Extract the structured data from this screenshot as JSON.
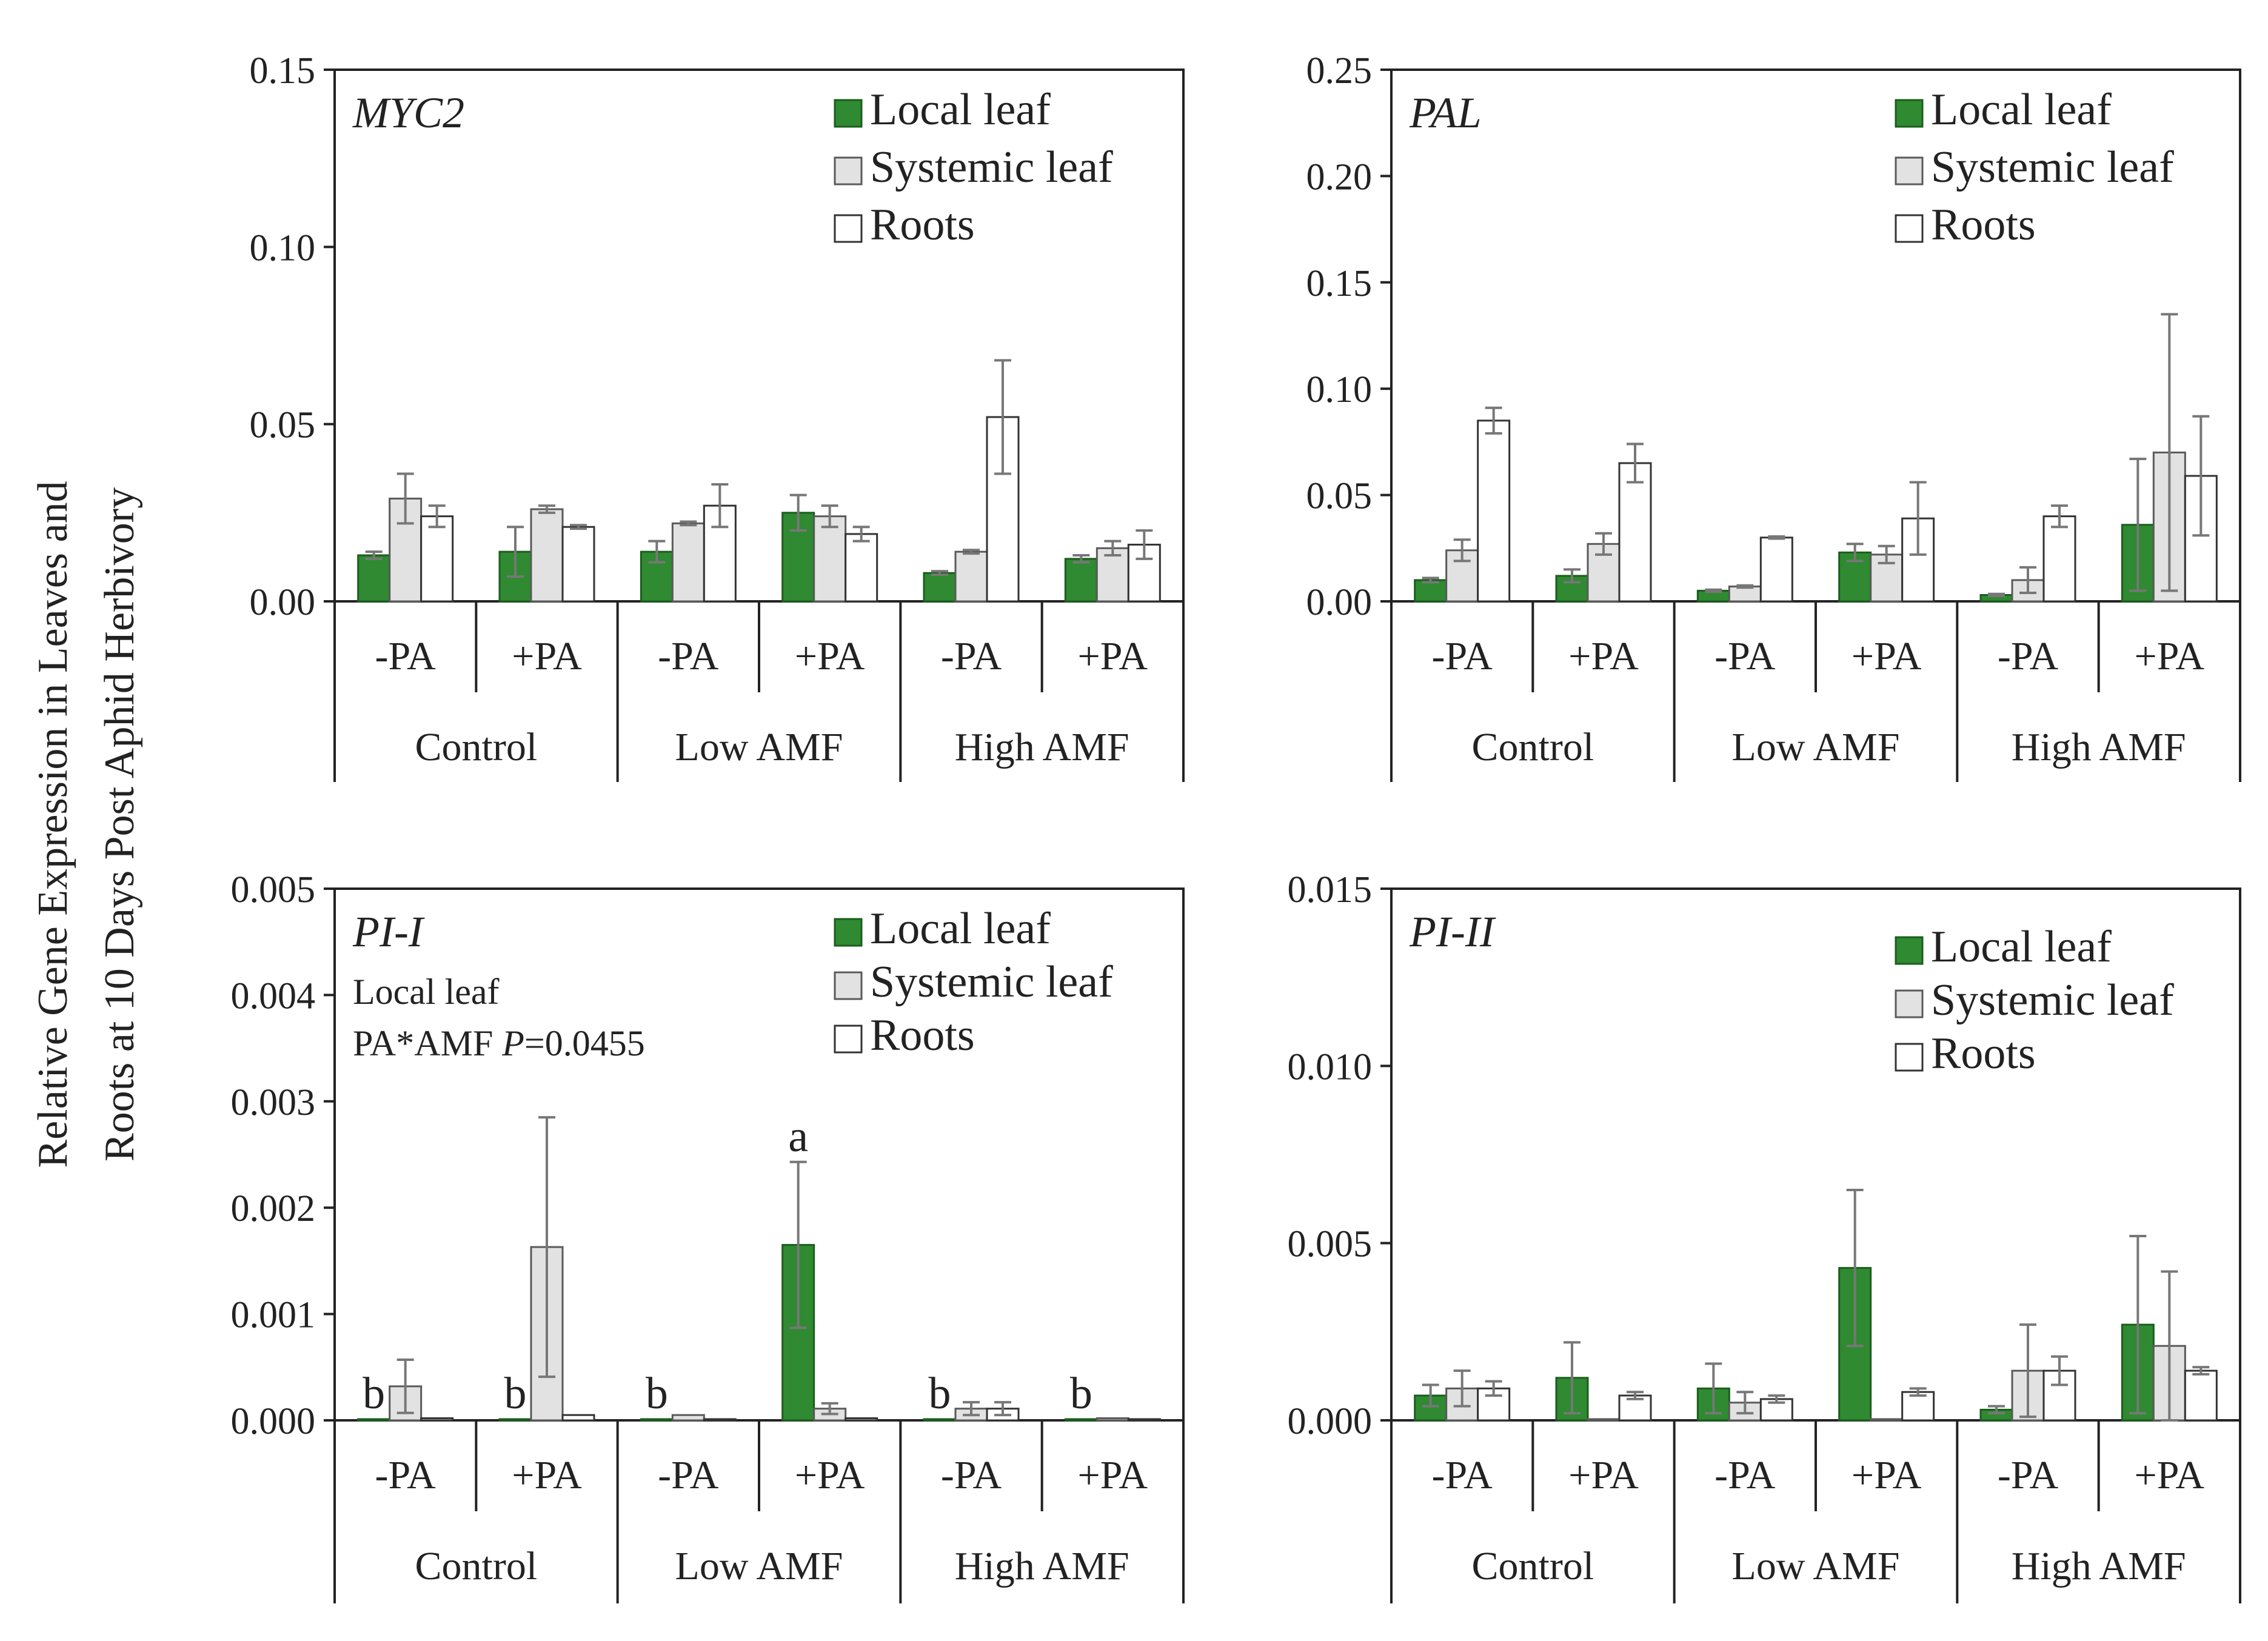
{
  "y_axis_label": {
    "line1": "Relative  Gene  Expression  in  Leaves  and",
    "line2": "Roots at 10 Days Post Aphid Herbivory"
  },
  "colors": {
    "local_leaf": "#2f8a31",
    "systemic_leaf": "#e2e2e2",
    "roots": "#ffffff",
    "axis": "#222222",
    "error_bar": "#777777"
  },
  "chart_data": [
    {
      "type": "bar",
      "title": "MYC2",
      "categories": [
        "-PA",
        "+PA",
        "-PA",
        "+PA",
        "-PA",
        "+PA"
      ],
      "groups": [
        "Control",
        "Low AMF",
        "High AMF"
      ],
      "legend": [
        "Local leaf",
        "Systemic leaf",
        "Roots"
      ],
      "ylim": [
        0,
        0.15
      ],
      "yticks": [
        "0.00",
        "0.05",
        "0.10",
        "0.15"
      ],
      "series": [
        {
          "name": "Local leaf",
          "values": [
            0.013,
            0.014,
            0.014,
            0.025,
            0.008,
            0.012
          ],
          "errors": [
            0.001,
            0.007,
            0.003,
            0.005,
            0.0005,
            0.001
          ]
        },
        {
          "name": "Systemic leaf",
          "values": [
            0.029,
            0.026,
            0.022,
            0.024,
            0.014,
            0.015
          ],
          "errors": [
            0.007,
            0.001,
            0.0005,
            0.003,
            0.0005,
            0.002
          ]
        },
        {
          "name": "Roots",
          "values": [
            0.024,
            0.021,
            0.027,
            0.019,
            0.052,
            0.016
          ],
          "errors": [
            0.003,
            0.0005,
            0.006,
            0.002,
            0.016,
            0.004
          ]
        }
      ]
    },
    {
      "type": "bar",
      "title": "PAL",
      "categories": [
        "-PA",
        "+PA",
        "-PA",
        "+PA",
        "-PA",
        "+PA"
      ],
      "groups": [
        "Control",
        "Low AMF",
        "High AMF"
      ],
      "legend": [
        "Local leaf",
        "Systemic leaf",
        "Roots"
      ],
      "ylim": [
        0,
        0.25
      ],
      "yticks": [
        "0.00",
        "0.05",
        "0.10",
        "0.15",
        "0.20",
        "0.25"
      ],
      "series": [
        {
          "name": "Local leaf",
          "values": [
            0.01,
            0.012,
            0.005,
            0.023,
            0.003,
            0.036
          ],
          "errors": [
            0.001,
            0.003,
            0.0005,
            0.004,
            0.0005,
            0.031
          ]
        },
        {
          "name": "Systemic leaf",
          "values": [
            0.024,
            0.027,
            0.007,
            0.022,
            0.01,
            0.07
          ],
          "errors": [
            0.005,
            0.005,
            0.0005,
            0.004,
            0.006,
            0.065
          ]
        },
        {
          "name": "Roots",
          "values": [
            0.085,
            0.065,
            0.03,
            0.039,
            0.04,
            0.059
          ],
          "errors": [
            0.006,
            0.009,
            0.0005,
            0.017,
            0.005,
            0.028
          ]
        }
      ]
    },
    {
      "type": "bar",
      "title": "PI-I",
      "annotation_line1": "Local leaf",
      "annotation_line2_prefix": "PA*AMF ",
      "annotation_p": "P",
      "annotation_value": "=0.0455",
      "categories": [
        "-PA",
        "+PA",
        "-PA",
        "+PA",
        "-PA",
        "+PA"
      ],
      "groups": [
        "Control",
        "Low AMF",
        "High AMF"
      ],
      "legend": [
        "Local leaf",
        "Systemic leaf",
        "Roots"
      ],
      "ylim": [
        0,
        0.005
      ],
      "yticks": [
        "0.000",
        "0.001",
        "0.002",
        "0.003",
        "0.004",
        "0.005"
      ],
      "letters": [
        "b",
        "b",
        "b",
        "a",
        "b",
        "b"
      ],
      "series": [
        {
          "name": "Local leaf",
          "values": [
            1e-05,
            1e-05,
            1e-05,
            0.00165,
            1e-05,
            1e-05
          ],
          "errors": [
            0,
            0,
            0,
            0.00078,
            0,
            0
          ]
        },
        {
          "name": "Systemic leaf",
          "values": [
            0.00032,
            0.00163,
            5e-05,
            0.00011,
            0.00011,
            2e-05
          ],
          "errors": [
            0.00025,
            0.00122,
            0,
            5e-05,
            6e-05,
            0
          ]
        },
        {
          "name": "Roots",
          "values": [
            2e-05,
            5e-05,
            1e-05,
            2e-05,
            0.00011,
            1e-05
          ],
          "errors": [
            0,
            0,
            0,
            0,
            6e-05,
            0
          ]
        }
      ]
    },
    {
      "type": "bar",
      "title": "PI-II",
      "categories": [
        "-PA",
        "+PA",
        "-PA",
        "+PA",
        "-PA",
        "+PA"
      ],
      "groups": [
        "Control",
        "Low AMF",
        "High AMF"
      ],
      "legend": [
        "Local leaf",
        "Systemic leaf",
        "Roots"
      ],
      "ylim": [
        0,
        0.015
      ],
      "yticks": [
        "0.000",
        "0.005",
        "0.010",
        "0.015"
      ],
      "series": [
        {
          "name": "Local leaf",
          "values": [
            0.0007,
            0.0012,
            0.0009,
            0.0043,
            0.0003,
            0.0027
          ],
          "errors": [
            0.0003,
            0.001,
            0.0007,
            0.0022,
            0.0001,
            0.0025
          ]
        },
        {
          "name": "Systemic leaf",
          "values": [
            0.0009,
            3e-05,
            0.0005,
            3e-05,
            0.0014,
            0.0021
          ],
          "errors": [
            0.0005,
            0,
            0.0003,
            0,
            0.0013,
            0.0021
          ]
        },
        {
          "name": "Roots",
          "values": [
            0.0009,
            0.0007,
            0.0006,
            0.0008,
            0.0014,
            0.0014
          ],
          "errors": [
            0.0002,
            0.0001,
            0.0001,
            0.0001,
            0.0004,
            0.0001
          ]
        }
      ]
    }
  ]
}
